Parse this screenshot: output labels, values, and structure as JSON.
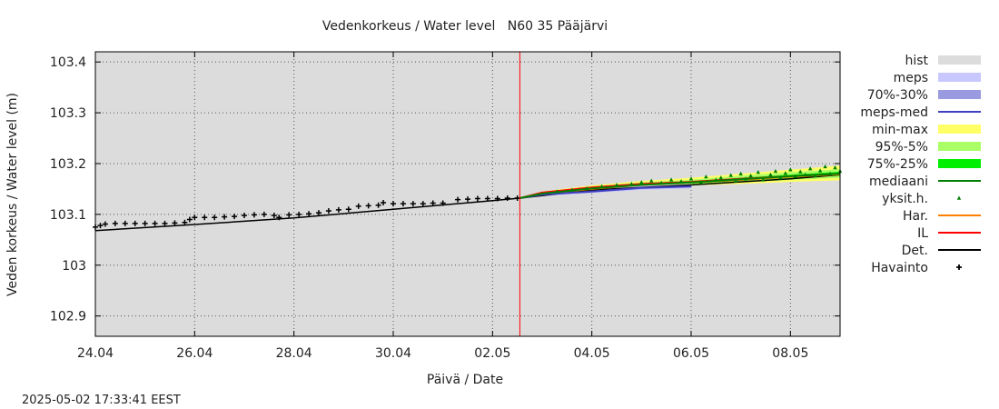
{
  "chart_data": {
    "type": "line",
    "title": "Vedenkorkeus / Water level   N60 35 Pääjärvi",
    "xlabel": "Päivä / Date",
    "ylabel": "Veden korkeus / Water level (m)",
    "timestamp": "2025-05-02 17:33:41 EEST",
    "xlim_days": [
      0,
      15
    ],
    "ylim": [
      102.86,
      103.42
    ],
    "x_ticks": [
      {
        "day": 0,
        "label": "24.04"
      },
      {
        "day": 2,
        "label": "26.04"
      },
      {
        "day": 4,
        "label": "28.04"
      },
      {
        "day": 6,
        "label": "30.04"
      },
      {
        "day": 8,
        "label": "02.05"
      },
      {
        "day": 10,
        "label": "04.05"
      },
      {
        "day": 12,
        "label": "06.05"
      },
      {
        "day": 14,
        "label": "08.05"
      }
    ],
    "y_ticks": [
      {
        "value": 102.9,
        "label": "102.9"
      },
      {
        "value": 103.0,
        "label": "103"
      },
      {
        "value": 103.1,
        "label": "103.1"
      },
      {
        "value": 103.2,
        "label": "103.2"
      },
      {
        "value": 103.3,
        "label": "103.3"
      },
      {
        "value": 103.4,
        "label": "103.4"
      }
    ],
    "current_time_day": 8.55,
    "legend": [
      {
        "label": "hist",
        "kind": "band",
        "color": "#dcdcdc"
      },
      {
        "label": "meps",
        "kind": "band",
        "color": "#c8c8ff"
      },
      {
        "label": "70%-30%",
        "kind": "band",
        "color": "#9a9ae0"
      },
      {
        "label": "meps-med",
        "kind": "line",
        "color": "#4040c0"
      },
      {
        "label": "min-max",
        "kind": "band",
        "color": "#ffff66"
      },
      {
        "label": "95%-5%",
        "kind": "band",
        "color": "#aaff66"
      },
      {
        "label": "75%-25%",
        "kind": "band",
        "color": "#00ee00"
      },
      {
        "label": "mediaani",
        "kind": "line",
        "color": "#008000"
      },
      {
        "label": "yksit.h.",
        "kind": "marker",
        "color": "#008000"
      },
      {
        "label": "Har.",
        "kind": "line",
        "color": "#ff8000"
      },
      {
        "label": "IL",
        "kind": "line",
        "color": "#ff0000"
      },
      {
        "label": "Det.",
        "kind": "line",
        "color": "#000000"
      },
      {
        "label": "Havainto",
        "kind": "plus",
        "color": "#000000"
      }
    ],
    "series": [
      {
        "name": "Det.",
        "color": "#000000",
        "points": [
          [
            0,
            103.068
          ],
          [
            2,
            103.08
          ],
          [
            4,
            103.093
          ],
          [
            6,
            103.11
          ],
          [
            8,
            103.127
          ],
          [
            8.55,
            103.132
          ],
          [
            10,
            103.148
          ],
          [
            12,
            103.158
          ],
          [
            14,
            103.17
          ],
          [
            15,
            103.178
          ]
        ]
      },
      {
        "name": "Havainto",
        "color": "#000000",
        "points": [
          [
            0.0,
            103.075
          ],
          [
            0.1,
            103.078
          ],
          [
            0.2,
            103.081
          ],
          [
            0.4,
            103.082
          ],
          [
            0.6,
            103.082
          ],
          [
            0.8,
            103.082
          ],
          [
            1.0,
            103.082
          ],
          [
            1.2,
            103.082
          ],
          [
            1.4,
            103.082
          ],
          [
            1.6,
            103.083
          ],
          [
            1.8,
            103.084
          ],
          [
            1.9,
            103.09
          ],
          [
            2.0,
            103.094
          ],
          [
            2.2,
            103.094
          ],
          [
            2.4,
            103.094
          ],
          [
            2.6,
            103.095
          ],
          [
            2.8,
            103.096
          ],
          [
            3.0,
            103.098
          ],
          [
            3.2,
            103.099
          ],
          [
            3.4,
            103.1
          ],
          [
            3.6,
            103.098
          ],
          [
            3.7,
            103.094
          ],
          [
            3.9,
            103.099
          ],
          [
            4.1,
            103.1
          ],
          [
            4.3,
            103.101
          ],
          [
            4.5,
            103.103
          ],
          [
            4.7,
            103.107
          ],
          [
            4.9,
            103.109
          ],
          [
            5.1,
            103.11
          ],
          [
            5.3,
            103.116
          ],
          [
            5.5,
            103.117
          ],
          [
            5.7,
            103.118
          ],
          [
            5.8,
            103.123
          ],
          [
            6.0,
            103.121
          ],
          [
            6.2,
            103.121
          ],
          [
            6.4,
            103.121
          ],
          [
            6.6,
            103.121
          ],
          [
            6.8,
            103.122
          ],
          [
            7.0,
            103.122
          ],
          [
            7.3,
            103.129
          ],
          [
            7.5,
            103.13
          ],
          [
            7.7,
            103.131
          ],
          [
            7.9,
            103.131
          ],
          [
            8.1,
            103.131
          ],
          [
            8.3,
            103.132
          ],
          [
            8.5,
            103.132
          ]
        ]
      },
      {
        "name": "IL",
        "color": "#ff0000",
        "points": [
          [
            8.55,
            103.132
          ],
          [
            9,
            103.143
          ],
          [
            10,
            103.153
          ],
          [
            11,
            103.16
          ],
          [
            12,
            103.164
          ],
          [
            13,
            103.17
          ],
          [
            14,
            103.175
          ],
          [
            15,
            103.18
          ]
        ]
      },
      {
        "name": "Har.",
        "color": "#ff8000",
        "points": [
          [
            8.55,
            103.132
          ],
          [
            9,
            103.141
          ],
          [
            10,
            103.15
          ],
          [
            11,
            103.158
          ],
          [
            12,
            103.163
          ],
          [
            13,
            103.168
          ],
          [
            14,
            103.174
          ],
          [
            15,
            103.179
          ]
        ]
      },
      {
        "name": "meps-med",
        "color": "#4040c0",
        "points": [
          [
            8.55,
            103.132
          ],
          [
            9,
            103.139
          ],
          [
            10,
            103.145
          ],
          [
            11,
            103.152
          ],
          [
            12,
            103.155
          ]
        ]
      },
      {
        "name": "mediaani",
        "color": "#008000",
        "points": [
          [
            8.55,
            103.132
          ],
          [
            9,
            103.141
          ],
          [
            10,
            103.151
          ],
          [
            11,
            103.158
          ],
          [
            12,
            103.163
          ],
          [
            13,
            103.169
          ],
          [
            14,
            103.175
          ],
          [
            15,
            103.18
          ]
        ]
      }
    ],
    "bands": [
      {
        "name": "min-max",
        "color": "#ffff66",
        "x": [
          8.55,
          9,
          10,
          11,
          12,
          13,
          14,
          15
        ],
        "low": [
          103.132,
          103.138,
          103.146,
          103.153,
          103.157,
          103.16,
          103.164,
          103.167
        ],
        "high": [
          103.132,
          103.145,
          103.157,
          103.166,
          103.172,
          103.18,
          103.188,
          103.196
        ]
      },
      {
        "name": "95%-5%",
        "color": "#aaff66",
        "x": [
          8.55,
          9,
          10,
          11,
          12,
          13,
          14,
          15
        ],
        "low": [
          103.132,
          103.139,
          103.148,
          103.155,
          103.159,
          103.163,
          103.168,
          103.172
        ],
        "high": [
          103.132,
          103.143,
          103.155,
          103.163,
          103.168,
          103.176,
          103.183,
          103.189
        ]
      },
      {
        "name": "75%-25%",
        "color": "#00ee00",
        "x": [
          8.55,
          9,
          10,
          11,
          12,
          13,
          14,
          15
        ],
        "low": [
          103.132,
          103.14,
          103.15,
          103.157,
          103.161,
          103.166,
          103.172,
          103.176
        ],
        "high": [
          103.132,
          103.142,
          103.153,
          103.16,
          103.165,
          103.172,
          103.178,
          103.184
        ]
      },
      {
        "name": "meps",
        "color": "#c8c8ff",
        "x": [
          8.55,
          9,
          10,
          11,
          12
        ],
        "low": [
          103.132,
          103.136,
          103.142,
          103.148,
          103.151
        ],
        "high": [
          103.132,
          103.141,
          103.149,
          103.156,
          103.16
        ]
      },
      {
        "name": "70%-30%",
        "color": "#9a9ae0",
        "x": [
          8.55,
          9,
          10,
          11,
          12
        ],
        "low": [
          103.132,
          103.137,
          103.143,
          103.15,
          103.153
        ],
        "high": [
          103.132,
          103.14,
          103.147,
          103.154,
          103.158
        ]
      }
    ],
    "scatter": {
      "name": "yksit.h.",
      "color": "#008000",
      "points": [
        [
          9.3,
          103.145
        ],
        [
          9.6,
          103.148
        ],
        [
          9.9,
          103.151
        ],
        [
          10.2,
          103.155
        ],
        [
          10.5,
          103.158
        ],
        [
          10.8,
          103.16
        ],
        [
          11.0,
          103.163
        ],
        [
          11.2,
          103.166
        ],
        [
          11.4,
          103.162
        ],
        [
          11.6,
          103.168
        ],
        [
          11.8,
          103.165
        ],
        [
          12.0,
          103.17
        ],
        [
          12.2,
          103.163
        ],
        [
          12.3,
          103.174
        ],
        [
          12.5,
          103.168
        ],
        [
          12.6,
          103.172
        ],
        [
          12.8,
          103.177
        ],
        [
          12.9,
          103.166
        ],
        [
          13.0,
          103.18
        ],
        [
          13.1,
          103.17
        ],
        [
          13.2,
          103.176
        ],
        [
          13.35,
          103.183
        ],
        [
          13.45,
          103.168
        ],
        [
          13.6,
          103.178
        ],
        [
          13.7,
          103.185
        ],
        [
          13.8,
          103.172
        ],
        [
          13.9,
          103.181
        ],
        [
          14.0,
          103.188
        ],
        [
          14.1,
          103.175
        ],
        [
          14.2,
          103.184
        ],
        [
          14.3,
          103.178
        ],
        [
          14.4,
          103.19
        ],
        [
          14.5,
          103.176
        ],
        [
          14.6,
          103.186
        ],
        [
          14.7,
          103.194
        ],
        [
          14.8,
          103.18
        ],
        [
          14.9,
          103.192
        ],
        [
          15.0,
          103.185
        ]
      ]
    }
  }
}
